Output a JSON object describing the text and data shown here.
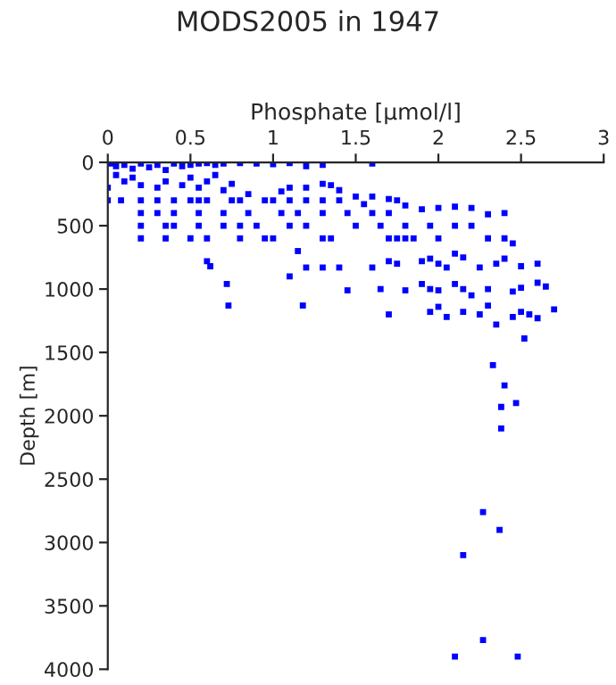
{
  "chart_data": {
    "type": "scatter",
    "title": "MODS2005 in 1947",
    "xlabel": "Phosphate [µmol/l]",
    "ylabel": "Depth [m]",
    "x": [
      0.02,
      0.05,
      0.1,
      0.15,
      0.2,
      0.25,
      0.3,
      0.35,
      0.4,
      0.45,
      0.5,
      0.55,
      0.6,
      0.65,
      0.7,
      0.8,
      0.9,
      1.0,
      1.1,
      1.2,
      1.3,
      1.6,
      0.05,
      0.1,
      0.0,
      0.0,
      0.08,
      0.15,
      0.2,
      0.3,
      0.35,
      0.45,
      0.5,
      0.55,
      0.6,
      0.65,
      0.7,
      0.75,
      0.85,
      0.2,
      0.3,
      0.4,
      0.5,
      0.55,
      0.6,
      0.75,
      0.8,
      0.95,
      1.0,
      1.1,
      1.2,
      1.3,
      1.4,
      1.05,
      1.1,
      1.2,
      1.3,
      1.35,
      1.4,
      1.5,
      1.55,
      1.6,
      1.7,
      1.75,
      1.8,
      1.9,
      2.0,
      2.1,
      2.2,
      2.3,
      2.4,
      0.2,
      0.3,
      0.4,
      0.55,
      0.7,
      0.85,
      1.05,
      1.15,
      1.3,
      1.45,
      1.6,
      1.7,
      0.2,
      0.35,
      0.4,
      0.55,
      0.7,
      0.8,
      0.9,
      1.1,
      1.2,
      1.5,
      1.65,
      1.8,
      1.95,
      2.1,
      2.2,
      0.2,
      0.35,
      0.5,
      0.6,
      0.8,
      0.95,
      1.0,
      1.3,
      1.35,
      1.7,
      1.75,
      1.8,
      1.85,
      2.0,
      2.3,
      2.4,
      2.45,
      1.15,
      1.2,
      1.3,
      1.4,
      0.6,
      0.62,
      1.6,
      1.7,
      1.75,
      1.9,
      1.95,
      2.0,
      2.05,
      2.1,
      2.15,
      2.25,
      2.35,
      2.4,
      2.5,
      2.6,
      0.72,
      1.1,
      1.45,
      1.65,
      1.8,
      1.9,
      1.95,
      2.0,
      2.1,
      2.15,
      2.2,
      2.3,
      2.45,
      2.5,
      2.6,
      2.65,
      0.73,
      1.18,
      1.7,
      1.95,
      2.0,
      2.05,
      2.15,
      2.25,
      2.3,
      2.35,
      2.45,
      2.5,
      2.55,
      2.6,
      2.7,
      2.52,
      2.33,
      2.4,
      2.47,
      2.38,
      2.38,
      2.27,
      2.37,
      2.15,
      2.27,
      2.1,
      2.48
    ],
    "values": [
      10,
      30,
      20,
      50,
      10,
      40,
      20,
      60,
      10,
      30,
      20,
      10,
      5,
      20,
      10,
      5,
      10,
      15,
      5,
      30,
      20,
      10,
      100,
      150,
      200,
      300,
      300,
      120,
      180,
      200,
      150,
      180,
      120,
      200,
      150,
      100,
      220,
      170,
      250,
      300,
      300,
      300,
      300,
      300,
      300,
      300,
      300,
      300,
      300,
      300,
      300,
      300,
      300,
      230,
      200,
      200,
      170,
      180,
      220,
      270,
      330,
      270,
      290,
      300,
      340,
      370,
      360,
      350,
      360,
      410,
      400,
      400,
      400,
      400,
      400,
      400,
      400,
      400,
      400,
      400,
      400,
      400,
      400,
      500,
      500,
      500,
      500,
      500,
      500,
      500,
      500,
      500,
      500,
      500,
      500,
      500,
      500,
      500,
      600,
      600,
      600,
      600,
      600,
      600,
      600,
      600,
      600,
      600,
      600,
      600,
      600,
      600,
      600,
      600,
      640,
      700,
      830,
      830,
      830,
      780,
      820,
      830,
      780,
      800,
      780,
      760,
      800,
      830,
      720,
      750,
      830,
      800,
      760,
      820,
      800,
      960,
      900,
      1010,
      1000,
      1010,
      960,
      1000,
      1010,
      960,
      1000,
      1050,
      1000,
      1020,
      990,
      950,
      980,
      1130,
      1130,
      1200,
      1180,
      1140,
      1220,
      1180,
      1200,
      1130,
      1280,
      1220,
      1180,
      1200,
      1230,
      1160,
      1390,
      1600,
      1760,
      1900,
      1930,
      2100,
      2760,
      2900,
      3100,
      3770,
      3900,
      3900
    ],
    "color": "#0000ff",
    "marker": "square",
    "xlim": [
      0,
      3
    ],
    "xticks": [
      0,
      0.5,
      1,
      1.5,
      2,
      2.5,
      3
    ],
    "ylim": [
      4000,
      0
    ],
    "yticks": [
      0,
      500,
      1000,
      1500,
      2000,
      2500,
      3000,
      3500,
      4000
    ],
    "grid": false,
    "legend": false
  }
}
